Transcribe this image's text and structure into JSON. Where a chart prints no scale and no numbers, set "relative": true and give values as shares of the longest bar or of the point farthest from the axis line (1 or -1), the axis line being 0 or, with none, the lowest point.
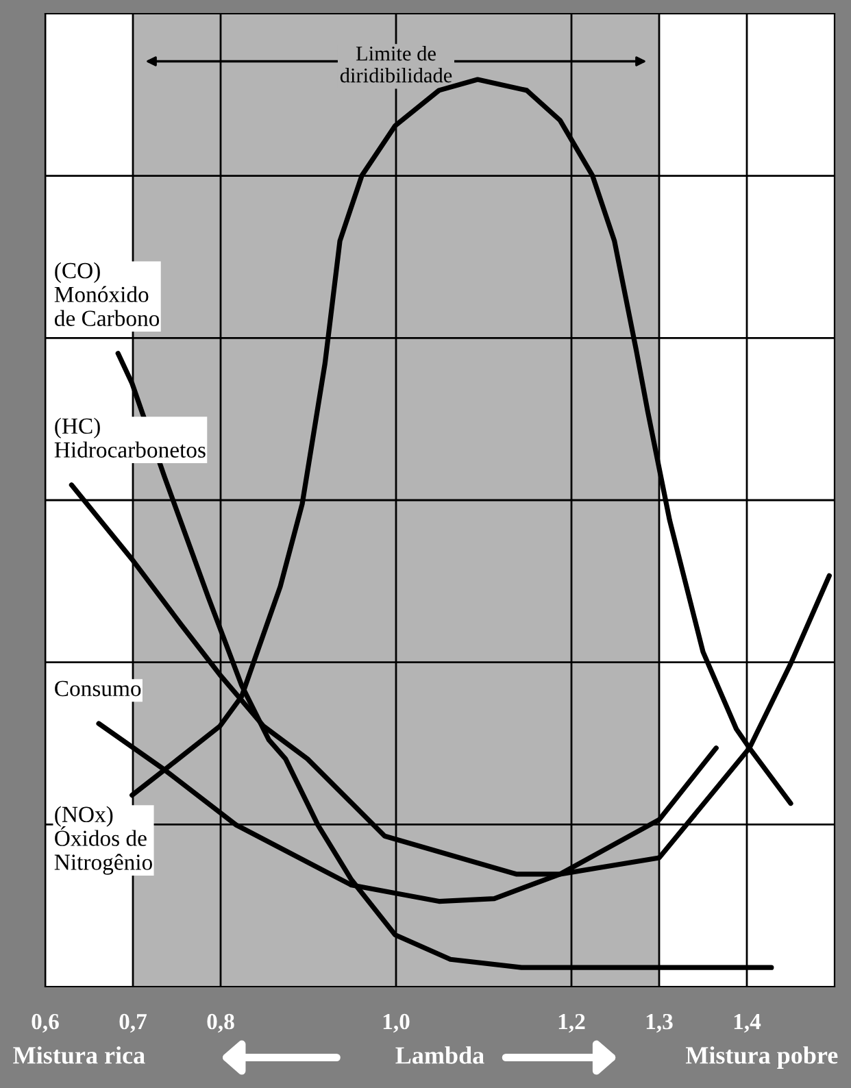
{
  "chart_data": {
    "type": "line",
    "relative": true,
    "xlabel": "Lambda",
    "xlim": [
      0.6,
      1.5
    ],
    "xticks": [
      {
        "value": 0.6,
        "label": "0,6"
      },
      {
        "value": 0.7,
        "label": "0,7"
      },
      {
        "value": 0.8,
        "label": "0,8"
      },
      {
        "value": 1.0,
        "label": "1,0"
      },
      {
        "value": 1.2,
        "label": "1,2"
      },
      {
        "value": 1.3,
        "label": "1,3"
      },
      {
        "value": 1.4,
        "label": "1,4"
      }
    ],
    "grid": true,
    "line_style": "solid",
    "marker": "none",
    "bands": [
      {
        "axis": "x",
        "from": 0.7,
        "to": 1.3,
        "label": "Limite de\ndiridibilidade",
        "color": "#b4b4b4"
      }
    ],
    "annotations": [
      "Mistura rica",
      "Mistura pobre"
    ],
    "series": [
      {
        "name": "(CO)\nMonóxido\nde Carbono",
        "color": "#000000",
        "x": [
          0.683,
          0.699,
          0.736,
          0.786,
          0.824,
          0.855,
          0.874,
          0.911,
          0.949,
          0.999,
          1.062,
          1.143,
          1.237,
          1.428
        ],
        "values": [
          0.698,
          0.665,
          0.562,
          0.429,
          0.332,
          0.272,
          0.251,
          0.178,
          0.118,
          0.057,
          0.03,
          0.021,
          0.021,
          0.021
        ]
      },
      {
        "name": "(HC)\nHidrocarbonetos",
        "color": "#000000",
        "x": [
          0.63,
          0.699,
          0.755,
          0.799,
          0.849,
          0.899,
          0.987,
          1.137,
          1.187,
          1.3,
          1.403,
          1.45,
          1.494
        ],
        "values": [
          0.553,
          0.471,
          0.399,
          0.344,
          0.287,
          0.251,
          0.166,
          0.124,
          0.124,
          0.142,
          0.263,
          0.356,
          0.453
        ]
      },
      {
        "name": "Consumo",
        "color": "#000000",
        "x": [
          0.661,
          0.736,
          0.818,
          0.949,
          1.049,
          1.112,
          1.187,
          1.3,
          1.365
        ],
        "values": [
          0.29,
          0.239,
          0.178,
          0.112,
          0.094,
          0.097,
          0.124,
          0.184,
          0.263
        ]
      },
      {
        "name": "(NOx)\nÓxidos de\nNitrogênio",
        "color": "#000000",
        "x": [
          0.699,
          0.736,
          0.799,
          0.824,
          0.868,
          0.893,
          0.919,
          0.936,
          0.961,
          0.999,
          1.049,
          1.093,
          1.149,
          1.187,
          1.224,
          1.249,
          1.274,
          1.287,
          1.312,
          1.35,
          1.388,
          1.403,
          1.45
        ],
        "values": [
          0.211,
          0.239,
          0.287,
          0.32,
          0.441,
          0.532,
          0.687,
          0.822,
          0.894,
          0.949,
          0.988,
          1.0,
          0.988,
          0.955,
          0.894,
          0.822,
          0.701,
          0.634,
          0.514,
          0.369,
          0.284,
          0.263,
          0.202
        ]
      }
    ]
  }
}
